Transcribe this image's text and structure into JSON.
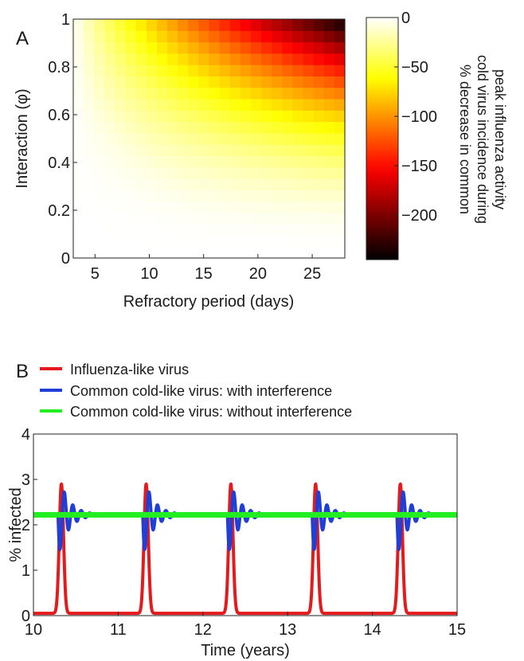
{
  "panel_a_label": "A",
  "panel_b_label": "B",
  "chart_data": [
    {
      "type": "heatmap",
      "title": "",
      "xlabel": "Refractory period (days)",
      "ylabel": "Interaction (φ)",
      "xlim": [
        3,
        28
      ],
      "ylim": [
        0,
        1
      ],
      "x_ticks": [
        5,
        10,
        15,
        20,
        25
      ],
      "y_ticks": [
        0,
        0.2,
        0.4,
        0.6,
        0.8,
        1
      ],
      "y_tick_labels": [
        "0",
        "0.2",
        "0.4",
        "0.6",
        "0.8",
        "1"
      ],
      "x_range": [
        3,
        28
      ],
      "y_range": [
        0,
        1
      ],
      "grid_nx": 26,
      "grid_ny": 21,
      "value_model": "value = -k * x * y^2.2 with bottom strip and low-refractory corner near 0",
      "value_peak": -245,
      "colorbar": {
        "label_lines": [
          "% decrease in common",
          "cold virus incidence during",
          "peak influenza activity"
        ],
        "ticks": [
          0,
          -50,
          -100,
          -150,
          -200
        ],
        "tick_labels": [
          "0",
          "−50",
          "−100",
          "−150",
          "−200"
        ],
        "range": [
          -245,
          0
        ],
        "colormap": "hot"
      }
    },
    {
      "type": "line",
      "title": "",
      "xlabel": "Time (years)",
      "ylabel": "% infected",
      "xlim": [
        10,
        15
      ],
      "ylim": [
        0,
        4
      ],
      "x_ticks": [
        10,
        11,
        12,
        13,
        14,
        15
      ],
      "y_ticks": [
        0,
        1,
        2,
        3,
        4
      ],
      "legend_position": "top-left",
      "series": [
        {
          "name": "Influenza-like virus",
          "color": "#e41a1c",
          "model": "yearly Gaussian peak",
          "peak_time_offset": 0.33,
          "peak_value": 2.9,
          "width_years": 0.025,
          "baseline": 0.05
        },
        {
          "name": "Common cold-like virus: with interference",
          "color": "#1f3fd6",
          "model": "damped oscillation after each influenza peak",
          "baseline": 2.22,
          "dip_value": 1.35,
          "max_value": 3.2,
          "oscillation_period_years": 0.1,
          "decay_years": 0.12
        },
        {
          "name": "Common cold-like virus: without interference",
          "color": "#22ee22",
          "model": "constant",
          "value": 2.22
        }
      ]
    }
  ]
}
